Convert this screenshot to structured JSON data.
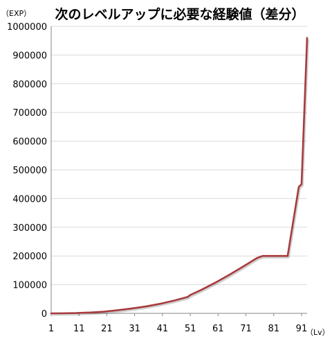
{
  "chart_data": {
    "type": "line",
    "title": "次のレベルアップに必要な経験値（差分）",
    "ylabel": "（EXP）",
    "xlabel": "（Lv）",
    "ylim": [
      0,
      1000000
    ],
    "xlim": [
      1,
      93
    ],
    "y_ticks": [
      "0",
      "100000",
      "200000",
      "300000",
      "400000",
      "500000",
      "600000",
      "700000",
      "800000",
      "900000",
      "1000000"
    ],
    "x_ticks": [
      "1",
      "11",
      "21",
      "31",
      "41",
      "51",
      "61",
      "71",
      "81",
      "91"
    ],
    "grid": true,
    "line_color": "#a83a3c",
    "series": [
      {
        "x": [
          1,
          5,
          10,
          15,
          20,
          25,
          30,
          35,
          40,
          45,
          50,
          51,
          55,
          60,
          65,
          70,
          75,
          77,
          78,
          80,
          85,
          86,
          90,
          91,
          93
        ],
        "values": [
          0,
          300,
          1000,
          3000,
          6000,
          11000,
          17000,
          24000,
          33000,
          44000,
          57000,
          64000,
          82000,
          107000,
          134000,
          163000,
          193000,
          200000,
          200000,
          200000,
          200000,
          200000,
          440000,
          450000,
          960000
        ]
      }
    ]
  }
}
